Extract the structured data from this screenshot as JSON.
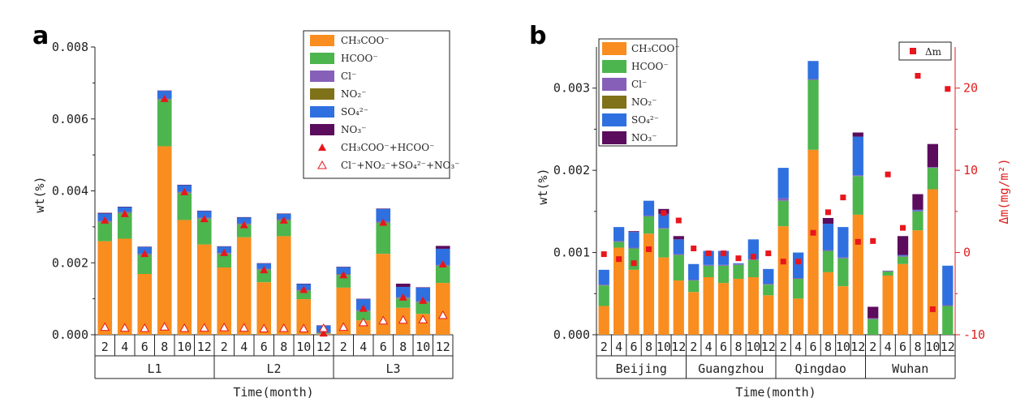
{
  "colors": {
    "CH3COO": "#f98d1f",
    "HCOO": "#4db54d",
    "Cl": "#8660b8",
    "NO2": "#7f7218",
    "SO4": "#2f70e0",
    "NO3": "#5c0c5c",
    "marker": "#e8161d"
  },
  "legend_a": [
    {
      "key": "CH3COO",
      "label": "CH₃COO⁻",
      "kind": "rect"
    },
    {
      "key": "HCOO",
      "label": "HCOO⁻",
      "kind": "rect"
    },
    {
      "key": "Cl",
      "label": "Cl⁻",
      "kind": "rect"
    },
    {
      "key": "NO2",
      "label": "NO₂⁻",
      "kind": "rect"
    },
    {
      "key": "SO4",
      "label": "SO₄²⁻",
      "kind": "rect"
    },
    {
      "key": "NO3",
      "label": "NO₃⁻",
      "kind": "rect"
    },
    {
      "key": "tri_filled",
      "label": "CH₃COO⁻+HCOO⁻",
      "kind": "tri-filled"
    },
    {
      "key": "tri_open",
      "label": "Cl⁻+NO₂⁻+SO₄²⁻+NO₃⁻",
      "kind": "tri-open"
    }
  ],
  "legend_b": [
    {
      "key": "CH3COO",
      "label": "CH₃COO⁻",
      "kind": "rect"
    },
    {
      "key": "HCOO",
      "label": "HCOO⁻",
      "kind": "rect"
    },
    {
      "key": "Cl",
      "label": "Cl⁻",
      "kind": "rect"
    },
    {
      "key": "NO2",
      "label": "NO₂⁻",
      "kind": "rect"
    },
    {
      "key": "SO4",
      "label": "SO₄²⁻",
      "kind": "rect"
    },
    {
      "key": "NO3",
      "label": "NO₃⁻",
      "kind": "rect"
    }
  ],
  "legend_b_right": {
    "label": "Δm"
  },
  "chart_data": [
    {
      "panel": "a",
      "type": "bar",
      "stacked": true,
      "xlabel": "Time(month)",
      "ylabel": "wt(%)",
      "ylim": [
        0,
        0.008
      ],
      "yticks": [
        "0.000",
        "0.002",
        "0.004",
        "0.006",
        "0.008"
      ],
      "ytick_values": [
        0,
        0.002,
        0.004,
        0.006,
        0.008
      ],
      "categories": [
        "2",
        "4",
        "6",
        "8",
        "10",
        "12",
        "2",
        "4",
        "6",
        "8",
        "10",
        "12",
        "2",
        "4",
        "6",
        "8",
        "10",
        "12"
      ],
      "groups": [
        "L1",
        "L2",
        "L3"
      ],
      "series": [
        {
          "name": "CH₃COO⁻",
          "key": "CH3COO",
          "values": [
            0.0026,
            0.00267,
            0.00169,
            0.00524,
            0.00319,
            0.00251,
            0.00187,
            0.00271,
            0.00146,
            0.00274,
            0.00099,
            2e-05,
            0.00131,
            0.0004,
            0.00225,
            0.00075,
            0.00058,
            0.00144
          ]
        },
        {
          "name": "HCOO⁻",
          "key": "HCOO",
          "values": [
            0.00053,
            0.00071,
            0.00053,
            0.00129,
            0.00075,
            0.00071,
            0.00037,
            0.00035,
            0.00034,
            0.00044,
            0.00023,
            2e-05,
            0.00035,
            0.00025,
            0.00086,
            0.00026,
            0.00032,
            0.00047
          ]
        },
        {
          "name": "Cl⁻",
          "key": "Cl",
          "values": [
            2e-05,
            2e-05,
            2e-05,
            2e-05,
            2e-05,
            2e-05,
            2e-05,
            2e-05,
            2e-05,
            2e-05,
            2e-05,
            2e-05,
            2e-05,
            2e-05,
            2e-05,
            2e-05,
            2e-05,
            2e-05
          ]
        },
        {
          "name": "NO₂⁻",
          "key": "NO2",
          "values": [
            1e-05,
            1e-05,
            1e-05,
            1e-05,
            1e-05,
            1e-05,
            1e-05,
            1e-05,
            1e-05,
            1e-05,
            1e-05,
            1e-05,
            1e-05,
            1e-05,
            1e-05,
            1e-05,
            1e-05,
            1e-05
          ]
        },
        {
          "name": "SO₄²⁻",
          "key": "SO4",
          "values": [
            0.00021,
            0.00014,
            0.00019,
            0.00022,
            0.00019,
            0.00019,
            0.00018,
            0.00017,
            0.00015,
            0.00015,
            0.00016,
            0.00018,
            0.00019,
            0.00031,
            0.00036,
            0.00029,
            0.00038,
            0.00045
          ]
        },
        {
          "name": "NO₃⁻",
          "key": "NO3",
          "values": [
            2e-05,
            1e-05,
            1e-05,
            1e-05,
            1e-05,
            1e-05,
            1e-05,
            1e-05,
            1e-05,
            1e-05,
            1e-05,
            1e-05,
            1e-05,
            1e-05,
            1e-05,
            9e-05,
            1e-05,
            8e-05
          ]
        }
      ],
      "markers": [
        {
          "name": "CH₃COO⁻+HCOO⁻",
          "style": "tri-filled",
          "values": [
            0.00318,
            0.00336,
            0.00225,
            0.00656,
            0.00397,
            0.00322,
            0.00228,
            0.00305,
            0.0018,
            0.00318,
            0.00125,
            4e-05,
            0.00166,
            0.00073,
            0.00312,
            0.00104,
            0.00095,
            0.00196
          ]
        },
        {
          "name": "Cl⁻+NO₂⁻+SO₄²⁻+NO₃⁻",
          "style": "tri-open",
          "values": [
            0.00021,
            0.00019,
            0.00018,
            0.00022,
            0.00018,
            0.00019,
            0.0002,
            0.00019,
            0.00017,
            0.00018,
            0.00017,
            0.00018,
            0.00021,
            0.00034,
            0.00039,
            0.00041,
            0.00042,
            0.00054
          ]
        }
      ]
    },
    {
      "panel": "b",
      "type": "bar",
      "stacked": true,
      "xlabel": "Time(month)",
      "ylabel": "wt(%)",
      "ylabel_right": "Δm(mg/m²)",
      "ylim": [
        0,
        0.0035
      ],
      "yticks": [
        "0.000",
        "0.001",
        "0.002",
        "0.003"
      ],
      "ytick_values": [
        0,
        0.001,
        0.002,
        0.003
      ],
      "ylim_right": [
        -10,
        25
      ],
      "yticks_right": [
        "-10",
        "0",
        "10",
        "20"
      ],
      "ytick_right_values": [
        -10,
        0,
        10,
        20
      ],
      "categories": [
        "2",
        "4",
        "6",
        "8",
        "10",
        "12",
        "2",
        "4",
        "6",
        "8",
        "10",
        "12",
        "2",
        "4",
        "6",
        "8",
        "10",
        "12",
        "2",
        "4",
        "6",
        "8",
        "10",
        "12"
      ],
      "groups": [
        "Beijing",
        "Guangzhou",
        "Qingdao",
        "Wuhan"
      ],
      "series": [
        {
          "name": "CH₃COO⁻",
          "key": "CH3COO",
          "values": [
            0.00035,
            0.00106,
            0.00079,
            0.00123,
            0.00094,
            0.00066,
            0.00052,
            0.0007,
            0.00063,
            0.00068,
            0.0007,
            0.00048,
            0.00132,
            0.00044,
            0.00225,
            0.00076,
            0.00059,
            0.00146,
            0,
            0.00072,
            0.00086,
            0.00127,
            0.00177,
            0
          ]
        },
        {
          "name": "HCOO⁻",
          "key": "HCOO",
          "values": [
            0.00025,
            7e-05,
            0.00026,
            0.00021,
            0.00035,
            0.00031,
            0.00014,
            0.00014,
            0.00021,
            0.00017,
            0.00021,
            0.00013,
            0.00031,
            0.00024,
            0.00085,
            0.00026,
            0.00034,
            0.00047,
            0.00019,
            5e-05,
            9e-05,
            0.00023,
            0.00026,
            0.00035
          ]
        },
        {
          "name": "Cl⁻",
          "key": "Cl",
          "values": [
            1e-05,
            1e-05,
            1e-05,
            1e-05,
            1e-05,
            1e-05,
            1e-05,
            1e-05,
            1e-05,
            1e-05,
            1e-05,
            1e-05,
            3e-05,
            1e-05,
            1e-05,
            1e-05,
            1e-05,
            1e-05,
            1e-05,
            1e-05,
            1e-05,
            1e-05,
            1e-05,
            1e-05
          ]
        },
        {
          "name": "NO₂⁻",
          "key": "NO2",
          "values": [
            0,
            0,
            0,
            0,
            0,
            0,
            0,
            0,
            0,
            0,
            0,
            0,
            0,
            0,
            0,
            0,
            0,
            0,
            0,
            0,
            0,
            0,
            0,
            0
          ]
        },
        {
          "name": "SO₄²⁻",
          "key": "SO4",
          "values": [
            0.00018,
            0.00017,
            0.00019,
            0.00018,
            0.00017,
            0.00018,
            0.00019,
            0.00017,
            0.00017,
            1e-05,
            0.00024,
            0.00018,
            0.00037,
            0.00031,
            0.00022,
            0.00032,
            0.00037,
            0.00047,
            0,
            0,
            1e-05,
            1e-05,
            0,
            0.00048
          ]
        },
        {
          "name": "NO₃⁻",
          "key": "NO3",
          "values": [
            0,
            0,
            1e-05,
            0,
            6e-05,
            4e-05,
            0,
            0,
            0,
            0,
            0,
            0,
            0,
            0,
            0,
            7e-05,
            0,
            5e-05,
            0.00014,
            0,
            0.00023,
            0.00019,
            0.00028,
            0
          ]
        }
      ],
      "markers": [
        {
          "name": "Δm",
          "style": "square",
          "axis": "right",
          "values": [
            -0.2,
            -0.8,
            -1.3,
            0.4,
            4.8,
            3.9,
            0.5,
            -0.1,
            -0.1,
            -0.7,
            -0.5,
            -0.1,
            -1.1,
            -1.1,
            2.4,
            4.9,
            6.7,
            1.3,
            1.4,
            9.5,
            3,
            21.5,
            -6.9,
            19.9
          ]
        }
      ]
    }
  ]
}
